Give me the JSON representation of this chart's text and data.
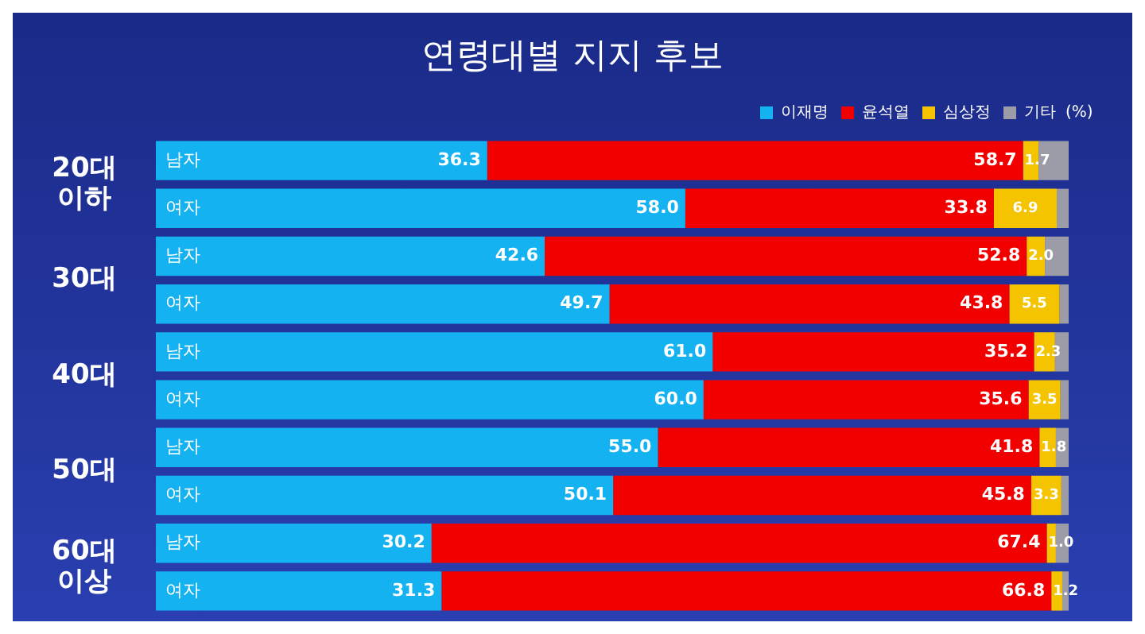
{
  "chart_data": {
    "type": "bar",
    "orientation": "horizontal",
    "stacked": true,
    "title": "연령대별 지지 후보",
    "categories": [
      "남자",
      "여자",
      "남자",
      "여자",
      "남자",
      "여자",
      "남자",
      "여자",
      "남자",
      "여자"
    ],
    "annotations": [
      "20대 이하",
      "30대",
      "40대",
      "50대",
      "60대 이상"
    ],
    "legend": "top right",
    "legend_title": "(%)",
    "series": [
      {
        "name": "이재명",
        "color": "#14b2f0",
        "values": [
          36.3,
          58.0,
          42.6,
          49.7,
          61.0,
          60.0,
          55.0,
          50.1,
          30.2,
          31.3
        ],
        "value_labels": [
          "36.3",
          "58.0",
          "42.6",
          "49.7",
          "61.0",
          "60.0",
          "55.0",
          "50.1",
          "30.2",
          "31.3"
        ]
      },
      {
        "name": "윤석열",
        "color": "#f20000",
        "values": [
          58.7,
          33.8,
          52.8,
          43.8,
          35.2,
          35.6,
          41.8,
          45.8,
          67.4,
          66.8
        ],
        "value_labels": [
          "58.7",
          "33.8",
          "52.8",
          "43.8",
          "35.2",
          "35.6",
          "41.8",
          "45.8",
          "67.4",
          "66.8"
        ]
      },
      {
        "name": "심상정",
        "color": "#f5c400",
        "values": [
          1.7,
          6.9,
          2.0,
          5.5,
          2.3,
          3.5,
          1.8,
          3.3,
          1.0,
          1.2
        ],
        "value_labels": [
          "1.7",
          "6.9",
          "2.0",
          "5.5",
          "2.3",
          "3.5",
          "1.8",
          "3.3",
          "1.0",
          "1.2"
        ]
      },
      {
        "name": "기타",
        "color": "#9c9ca8",
        "values": [
          3.3,
          1.3,
          2.6,
          1.0,
          1.5,
          0.9,
          1.4,
          0.8,
          1.4,
          0.7
        ],
        "value_labels": [
          null,
          null,
          null,
          null,
          null,
          null,
          null,
          null,
          null,
          null
        ]
      }
    ]
  }
}
